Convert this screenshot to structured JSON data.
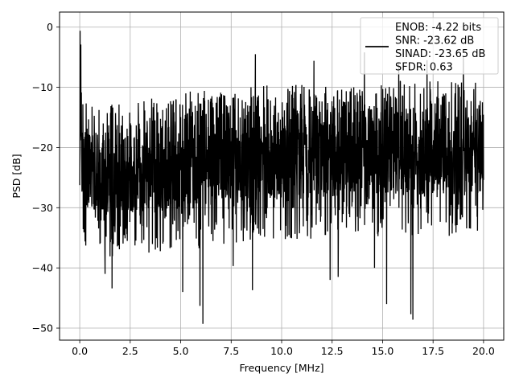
{
  "chart_data": {
    "type": "line",
    "title": "",
    "xlabel": "Frequency [MHz]",
    "ylabel": "PSD [dB]",
    "xlim": [
      -1.0,
      21.0
    ],
    "ylim": [
      -52.0,
      2.5
    ],
    "xticks": [
      0.0,
      2.5,
      5.0,
      7.5,
      10.0,
      12.5,
      15.0,
      17.5,
      20.0
    ],
    "xtick_labels": [
      "0.0",
      "2.5",
      "5.0",
      "7.5",
      "10.0",
      "12.5",
      "15.0",
      "17.5",
      "20.0"
    ],
    "yticks": [
      0,
      -10,
      -20,
      -30,
      -40,
      -50
    ],
    "ytick_labels": [
      "0",
      "−10",
      "−20",
      "−30",
      "−40",
      "−50"
    ],
    "grid": true,
    "legend_position": "top-right",
    "legend_lines": [
      "ENOB: -4.22 bits",
      "SNR: -23.62 dB",
      "SINAD: -23.65 dB",
      "SFDR: 0.63"
    ],
    "series": [
      {
        "color": "#000000",
        "x_range": [
          0.0,
          20.0
        ],
        "noise_band": {
          "x": [
            0.0,
            0.5,
            1.0,
            2.0,
            5.0,
            10.0,
            15.0,
            20.0
          ],
          "top": [
            -8.0,
            -11.5,
            -13.0,
            -12.5,
            -10.5,
            -9.0,
            -8.5,
            -9.0
          ],
          "bottom": [
            -27.0,
            -31.0,
            -31.5,
            -31.0,
            -30.0,
            -28.5,
            -28.0,
            -27.5
          ]
        },
        "peaks": [
          {
            "x": 0.02,
            "y": -0.6
          },
          {
            "x": 0.05,
            "y": -2.9
          },
          {
            "x": 8.7,
            "y": -4.5
          },
          {
            "x": 14.1,
            "y": -4.2
          },
          {
            "x": 19.0,
            "y": -4.8
          },
          {
            "x": 11.6,
            "y": -5.6
          },
          {
            "x": 15.8,
            "y": -5.9
          },
          {
            "x": 17.2,
            "y": -5.5
          }
        ],
        "dips": [
          {
            "x": 6.1,
            "y": -49.3
          },
          {
            "x": 16.5,
            "y": -48.6
          },
          {
            "x": 16.4,
            "y": -47.7
          },
          {
            "x": 5.95,
            "y": -46.3
          },
          {
            "x": 5.1,
            "y": -44.0
          },
          {
            "x": 8.55,
            "y": -43.7
          },
          {
            "x": 1.6,
            "y": -43.4
          },
          {
            "x": 15.2,
            "y": -46.0
          },
          {
            "x": 12.4,
            "y": -42.0
          },
          {
            "x": 7.6,
            "y": -39.7
          },
          {
            "x": 1.25,
            "y": -41.0
          },
          {
            "x": 14.6,
            "y": -40.0
          },
          {
            "x": 12.8,
            "y": -41.5
          }
        ]
      }
    ]
  }
}
